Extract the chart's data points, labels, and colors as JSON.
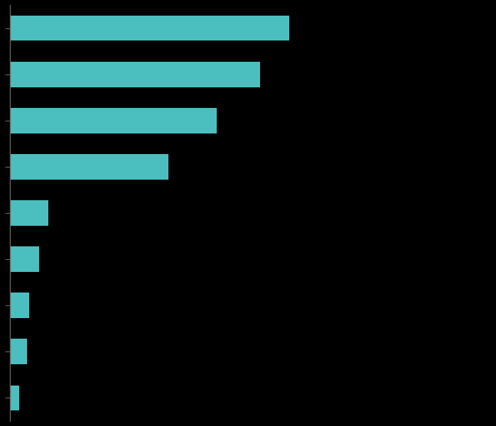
{
  "values": [
    58,
    52,
    43,
    33,
    8,
    6,
    4,
    3.5,
    2
  ],
  "bar_color": "#4BBFBF",
  "background_color": "#000000",
  "spine_color": "#666666",
  "tick_color": "#666666",
  "xlim": [
    0,
    100
  ],
  "bar_height": 0.55,
  "figsize": [
    6.98,
    6.0
  ],
  "dpi": 100
}
